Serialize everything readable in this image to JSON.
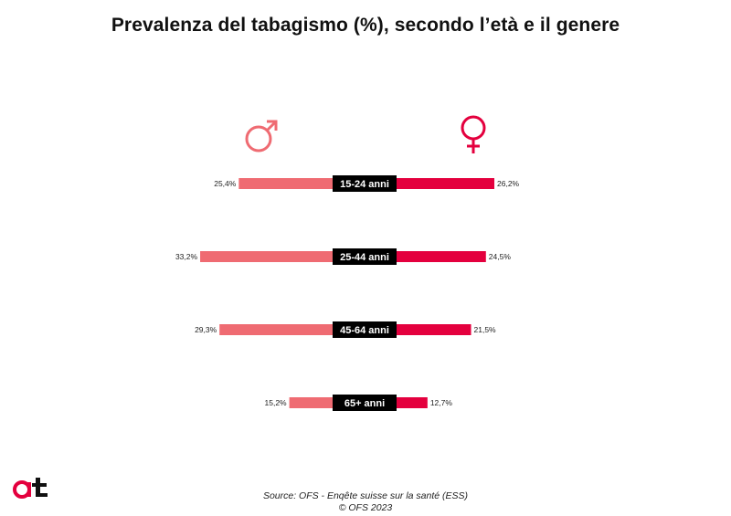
{
  "title": "Prevalenza del tabagismo (%), secondo l’età e il genere",
  "source_line1": "Source: OFS - Enqête suisse sur la santé (ESS)",
  "source_line2": "© OFS 2023",
  "icons": {
    "left": "male-symbol-icon",
    "right": "female-symbol-icon",
    "logo": "at-logo-icon"
  },
  "colors": {
    "male": "#ef6b72",
    "female": "#e4003e",
    "label_bg": "#000000",
    "label_text": "#ffffff"
  },
  "chart_data": {
    "type": "bar",
    "orientation": "horizontal-butterfly",
    "categories": [
      "15-24 anni",
      "25-44 anni",
      "45-64 anni",
      "65+ anni"
    ],
    "series": [
      {
        "values": [
          25.4,
          33.2,
          29.3,
          15.2
        ],
        "labels": [
          "25,4%",
          "33,2%",
          "29,3%",
          "15,2%"
        ],
        "color": "#ef6b72",
        "side": "left"
      },
      {
        "values": [
          26.2,
          24.5,
          21.5,
          12.7
        ],
        "labels": [
          "26,2%",
          "24,5%",
          "21,5%",
          "12,7%"
        ],
        "color": "#e4003e",
        "side": "right"
      }
    ]
  }
}
